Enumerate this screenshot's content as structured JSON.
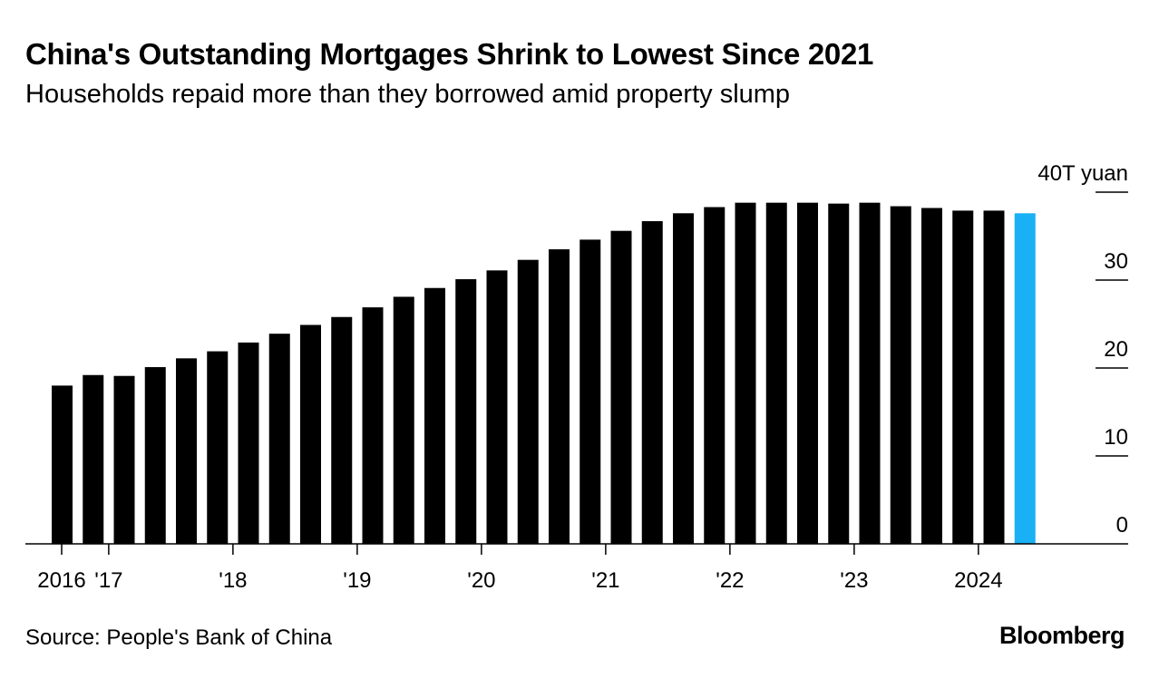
{
  "header": {
    "title": "China's Outstanding Mortgages Shrink to Lowest Since 2021",
    "subtitle": "Households repaid more than they borrowed amid property slump"
  },
  "footer": {
    "source": "Source: People's Bank of China",
    "brand": "Bloomberg"
  },
  "colors": {
    "bar": "#000000",
    "highlight": "#1ab0f5",
    "axis": "#000000"
  },
  "chart_data": {
    "type": "bar",
    "title": "China's Outstanding Mortgages Shrink to Lowest Since 2021",
    "subtitle": "Households repaid more than they borrowed amid property slump",
    "unit_label": "40T yuan",
    "ylabel": "T yuan",
    "xlabel": "",
    "ylim": [
      0,
      40
    ],
    "y_ticks": [
      {
        "value": 0,
        "label": "0"
      },
      {
        "value": 10,
        "label": "10"
      },
      {
        "value": 20,
        "label": "20"
      },
      {
        "value": 30,
        "label": "30"
      },
      {
        "value": 40,
        "label": "40T yuan"
      }
    ],
    "x_ticks": [
      {
        "index": 0,
        "label": "2016"
      },
      {
        "index": 2,
        "label": "'17"
      },
      {
        "index": 6,
        "label": "'18"
      },
      {
        "index": 10,
        "label": "'19"
      },
      {
        "index": 14,
        "label": "'20"
      },
      {
        "index": 18,
        "label": "'21"
      },
      {
        "index": 22,
        "label": "'22"
      },
      {
        "index": 26,
        "label": "'23"
      },
      {
        "index": 30,
        "label": "2024"
      }
    ],
    "tick_offset": -0.5,
    "grid": false,
    "highlight_index": 31,
    "series": [
      {
        "name": "Outstanding mortgages",
        "values": [
          18.0,
          19.2,
          19.1,
          20.1,
          21.1,
          21.9,
          22.9,
          23.9,
          24.9,
          25.8,
          26.9,
          28.1,
          29.1,
          30.1,
          31.1,
          32.3,
          33.5,
          34.6,
          35.6,
          36.7,
          37.6,
          38.3,
          38.8,
          38.8,
          38.8,
          38.7,
          38.8,
          38.4,
          38.2,
          37.9,
          37.9,
          37.6
        ]
      }
    ]
  }
}
